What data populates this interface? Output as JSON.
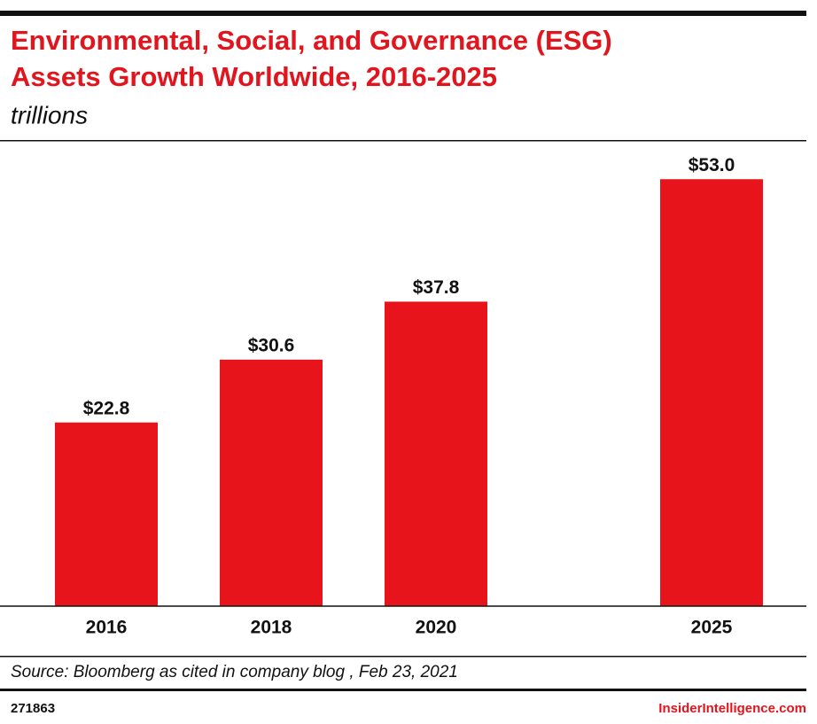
{
  "chart_data": {
    "type": "bar",
    "title": [
      "Environmental, Social, and Governance (ESG)",
      "Assets Growth Worldwide, 2016-2025"
    ],
    "subtitle": "trillions",
    "categories": [
      "2016",
      "2018",
      "2020",
      "2025"
    ],
    "values": [
      22.8,
      30.6,
      37.8,
      53.0
    ],
    "value_labels": [
      "$22.8",
      "$30.6",
      "$37.8",
      "$53.0"
    ],
    "color": "#e8141c",
    "source": "Source: Bloomberg as cited in company blog , Feb 23, 2021",
    "chart_id": "271863",
    "brand": "InsiderIntelligence.com"
  }
}
